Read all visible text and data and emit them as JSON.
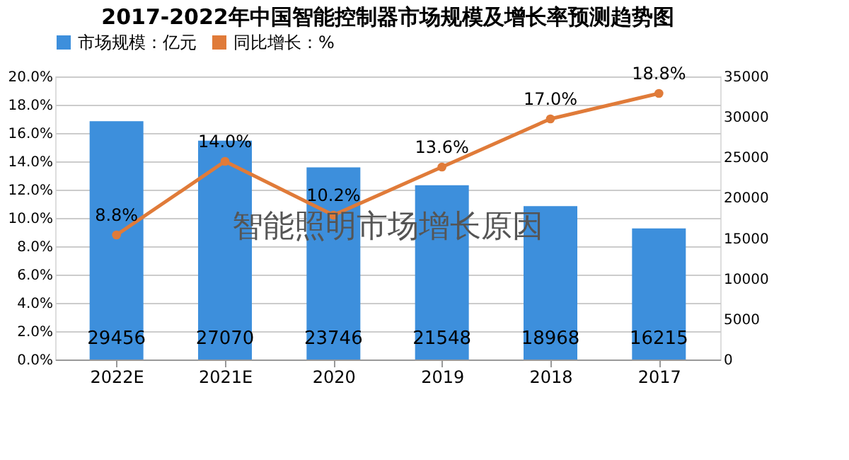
{
  "chart_data": {
    "type": "bar",
    "title": "2017-2022年中国智能控制器市场规模及增长率预测趋势图",
    "categories": [
      "2022E",
      "2021E",
      "2020",
      "2019",
      "2018",
      "2017"
    ],
    "series": [
      {
        "name": "市场规模：亿元",
        "axis": "y2",
        "color": "#3d8fdc",
        "values": [
          29456,
          27070,
          23746,
          21548,
          18968,
          16215
        ],
        "value_labels": [
          "29456",
          "27070",
          "23746",
          "21548",
          "18968",
          "16215"
        ]
      },
      {
        "name": "同比增长：%",
        "type": "line",
        "color": "#e07b39",
        "marker": "circle",
        "values": [
          8.8,
          14.0,
          10.2,
          13.6,
          17.0,
          18.8
        ],
        "value_labels": [
          "8.8%",
          "14.0%",
          "10.2%",
          "13.6%",
          "17.0%",
          "18.8%"
        ]
      }
    ],
    "ylim": [
      0,
      20
    ],
    "yticks": [
      {
        "value": 0,
        "label": "0.0%"
      },
      {
        "value": 2,
        "label": "2.0%"
      },
      {
        "value": 4,
        "label": "4.0%"
      },
      {
        "value": 6,
        "label": "6.0%"
      },
      {
        "value": 8,
        "label": "8.0%"
      },
      {
        "value": 10,
        "label": "10.0%"
      },
      {
        "value": 12,
        "label": "12.0%"
      },
      {
        "value": 14,
        "label": "14.0%"
      },
      {
        "value": 16,
        "label": "16.0%"
      },
      {
        "value": 18,
        "label": "18.0%"
      },
      {
        "value": 20,
        "label": "20.0%"
      }
    ],
    "y2lim": [
      0,
      35000
    ],
    "y2ticks": [
      0,
      5000,
      10000,
      15000,
      20000,
      25000,
      30000,
      35000
    ],
    "grid": "y",
    "legend": "top",
    "annotations": [
      "智能照明市场增长原因"
    ]
  }
}
